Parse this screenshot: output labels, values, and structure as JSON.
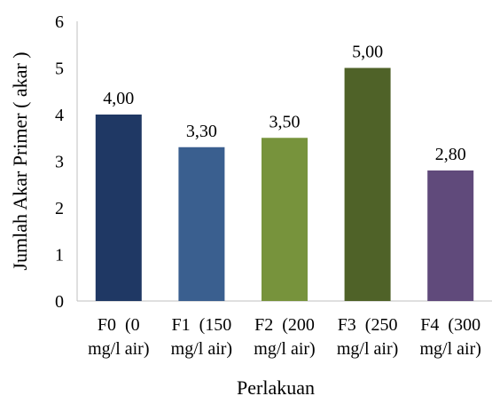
{
  "chart_data": {
    "type": "bar",
    "title": "",
    "xlabel": "Perlakuan",
    "ylabel": "Jumlah Akar Primer ( akar )",
    "ylim": [
      0,
      6
    ],
    "yticks": [
      "0",
      "1",
      "2",
      "3",
      "4",
      "5",
      "6"
    ],
    "grid": false,
    "legend": "none",
    "categories": [
      [
        "F0  (0",
        "mg/l air)"
      ],
      [
        "F1  (150",
        "mg/l air)"
      ],
      [
        "F2  (200",
        "mg/l air)"
      ],
      [
        "F3  (250",
        "mg/l air)"
      ],
      [
        "F4  (300",
        "mg/l air)"
      ]
    ],
    "values": [
      4.0,
      3.3,
      3.5,
      5.0,
      2.8
    ],
    "data_labels": [
      "4,00",
      "3,30",
      "3,50",
      "5,00",
      "2,80"
    ],
    "colors": [
      "#1f3864",
      "#3a5f8f",
      "#77933c",
      "#4f6228",
      "#604a7b"
    ]
  }
}
